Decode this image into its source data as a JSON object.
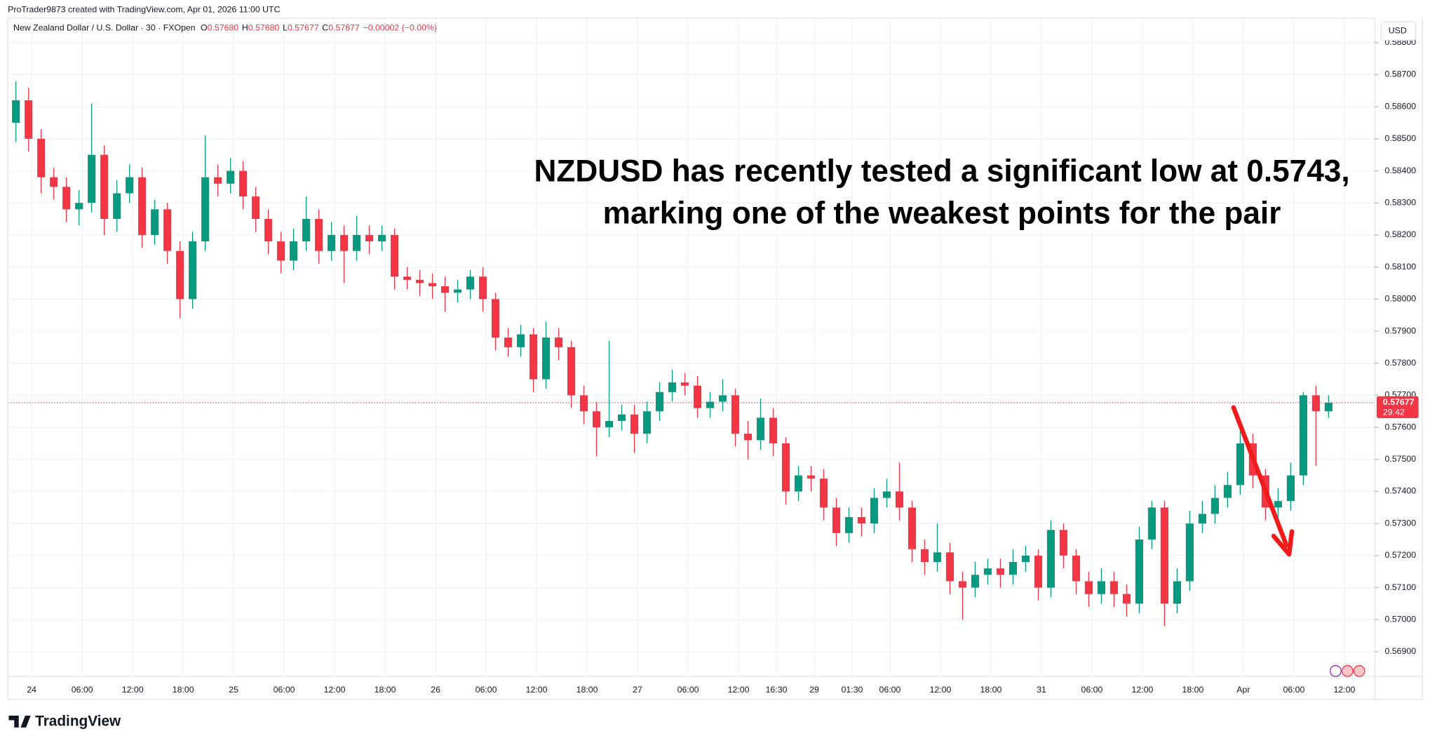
{
  "header": {
    "attribution": "ProTrader9873 created with TradingView.com, Apr 01, 2026 11:00 UTC",
    "symbol": "New Zealand Dollar / U.S. Dollar · 30 · FXOpen",
    "ohlc": [
      {
        "label": "O",
        "value": "0.57680"
      },
      {
        "label": "H",
        "value": "0.57680"
      },
      {
        "label": "L",
        "value": "0.57677"
      },
      {
        "label": "C",
        "value": "0.57677"
      }
    ],
    "change": "−0.00002 (−0.00%)",
    "currency": "USD"
  },
  "footer": {
    "logo": "TradingView"
  },
  "chart_data": {
    "type": "candlestick",
    "annotation": [
      "NZDUSD has recently tested a significant low at 0.5743,",
      "marking one of the weakest points for the pair"
    ],
    "up_color": "#089981",
    "down_color": "#f23645",
    "grid": true,
    "last_price": 0.57677,
    "countdown": "29:42",
    "ylim": [
      0.56823,
      0.58876
    ],
    "yticks": [
      {
        "value": 0.569,
        "label": "0.56900"
      },
      {
        "value": 0.57,
        "label": "0.57000"
      },
      {
        "value": 0.571,
        "label": "0.57100"
      },
      {
        "value": 0.572,
        "label": "0.57200"
      },
      {
        "value": 0.573,
        "label": "0.57300"
      },
      {
        "value": 0.574,
        "label": "0.57400"
      },
      {
        "value": 0.575,
        "label": "0.57500"
      },
      {
        "value": 0.576,
        "label": "0.57600"
      },
      {
        "value": 0.577,
        "label": "0.57700"
      },
      {
        "value": 0.578,
        "label": "0.57800"
      },
      {
        "value": 0.579,
        "label": "0.57900"
      },
      {
        "value": 0.58,
        "label": "0.58000"
      },
      {
        "value": 0.581,
        "label": "0.58100"
      },
      {
        "value": 0.582,
        "label": "0.58200"
      },
      {
        "value": 0.583,
        "label": "0.58300"
      },
      {
        "value": 0.584,
        "label": "0.58400"
      },
      {
        "value": 0.585,
        "label": "0.58500"
      },
      {
        "value": 0.586,
        "label": "0.58600"
      },
      {
        "value": 0.587,
        "label": "0.58700"
      },
      {
        "value": 0.588,
        "label": "0.58800"
      }
    ],
    "xlim": [
      -0.14,
      108.16
    ],
    "xticks": [
      {
        "value": 1.75,
        "label": "24"
      },
      {
        "value": 5.75,
        "label": "06:00"
      },
      {
        "value": 9.75,
        "label": "12:00"
      },
      {
        "value": 13.75,
        "label": "18:00"
      },
      {
        "value": 17.75,
        "label": "25"
      },
      {
        "value": 21.75,
        "label": "06:00"
      },
      {
        "value": 25.75,
        "label": "12:00"
      },
      {
        "value": 29.75,
        "label": "18:00"
      },
      {
        "value": 33.75,
        "label": "26"
      },
      {
        "value": 37.75,
        "label": "06:00"
      },
      {
        "value": 41.75,
        "label": "12:00"
      },
      {
        "value": 45.75,
        "label": "18:00"
      },
      {
        "value": 49.75,
        "label": "27"
      },
      {
        "value": 53.75,
        "label": "06:00"
      },
      {
        "value": 57.75,
        "label": "12:00"
      },
      {
        "value": 60.75,
        "label": "16:30"
      },
      {
        "value": 63.75,
        "label": "29"
      },
      {
        "value": 66.75,
        "label": "01:30"
      },
      {
        "value": 69.75,
        "label": "06:00"
      },
      {
        "value": 73.75,
        "label": "12:00"
      },
      {
        "value": 77.75,
        "label": "18:00"
      },
      {
        "value": 81.75,
        "label": "31"
      },
      {
        "value": 85.75,
        "label": "06:00"
      },
      {
        "value": 89.75,
        "label": "12:00"
      },
      {
        "value": 93.75,
        "label": "18:00"
      },
      {
        "value": 97.75,
        "label": "Apr"
      },
      {
        "value": 101.75,
        "label": "06:00"
      },
      {
        "value": 105.75,
        "label": "12:00"
      }
    ],
    "candles": [
      [
        0.5855,
        0.5868,
        0.5849,
        0.5862
      ],
      [
        0.5862,
        0.5866,
        0.5846,
        0.585
      ],
      [
        0.585,
        0.5853,
        0.5833,
        0.5838
      ],
      [
        0.5838,
        0.5841,
        0.5831,
        0.5835
      ],
      [
        0.5835,
        0.5838,
        0.5824,
        0.5828
      ],
      [
        0.5828,
        0.5834,
        0.5823,
        0.583
      ],
      [
        0.583,
        0.5861,
        0.5827,
        0.5845
      ],
      [
        0.5845,
        0.5848,
        0.582,
        0.5825
      ],
      [
        0.5825,
        0.5837,
        0.5821,
        0.5833
      ],
      [
        0.5833,
        0.5842,
        0.583,
        0.5838
      ],
      [
        0.5838,
        0.5841,
        0.5816,
        0.582
      ],
      [
        0.582,
        0.5831,
        0.5817,
        0.5828
      ],
      [
        0.5828,
        0.583,
        0.5811,
        0.5815
      ],
      [
        0.5815,
        0.5818,
        0.5794,
        0.58
      ],
      [
        0.58,
        0.5821,
        0.5797,
        0.5818
      ],
      [
        0.5818,
        0.5851,
        0.5815,
        0.5838
      ],
      [
        0.5838,
        0.5842,
        0.5832,
        0.5836
      ],
      [
        0.5836,
        0.5844,
        0.5833,
        0.584
      ],
      [
        0.584,
        0.5843,
        0.5828,
        0.5832
      ],
      [
        0.5832,
        0.5835,
        0.5821,
        0.5825
      ],
      [
        0.5825,
        0.5828,
        0.5814,
        0.5818
      ],
      [
        0.5818,
        0.5821,
        0.5808,
        0.5812
      ],
      [
        0.5812,
        0.5822,
        0.5809,
        0.5818
      ],
      [
        0.5818,
        0.5832,
        0.5815,
        0.5825
      ],
      [
        0.5825,
        0.5828,
        0.5811,
        0.5815
      ],
      [
        0.5815,
        0.5824,
        0.5812,
        0.582
      ],
      [
        0.582,
        0.5823,
        0.5805,
        0.5815
      ],
      [
        0.5815,
        0.5826,
        0.5812,
        0.582
      ],
      [
        0.582,
        0.5823,
        0.5814,
        0.5818
      ],
      [
        0.5818,
        0.5823,
        0.5815,
        0.582
      ],
      [
        0.582,
        0.5822,
        0.5803,
        0.5807
      ],
      [
        0.5807,
        0.581,
        0.5803,
        0.5806
      ],
      [
        0.5806,
        0.5809,
        0.5801,
        0.5805
      ],
      [
        0.5805,
        0.5808,
        0.58,
        0.5804
      ],
      [
        0.5804,
        0.5807,
        0.5796,
        0.5802
      ],
      [
        0.5802,
        0.5806,
        0.5799,
        0.5803
      ],
      [
        0.5803,
        0.5809,
        0.58,
        0.5807
      ],
      [
        0.5807,
        0.581,
        0.5796,
        0.58
      ],
      [
        0.58,
        0.5802,
        0.5784,
        0.5788
      ],
      [
        0.5788,
        0.5791,
        0.5782,
        0.5785
      ],
      [
        0.5785,
        0.5792,
        0.5782,
        0.5789
      ],
      [
        0.5789,
        0.5791,
        0.5771,
        0.5775
      ],
      [
        0.5775,
        0.5793,
        0.5772,
        0.5788
      ],
      [
        0.5788,
        0.5791,
        0.5781,
        0.5785
      ],
      [
        0.5785,
        0.5787,
        0.5766,
        0.577
      ],
      [
        0.577,
        0.5773,
        0.5761,
        0.5765
      ],
      [
        0.5765,
        0.5768,
        0.5751,
        0.576
      ],
      [
        0.576,
        0.5787,
        0.5757,
        0.5762
      ],
      [
        0.5762,
        0.5767,
        0.5759,
        0.5764
      ],
      [
        0.5764,
        0.5767,
        0.5752,
        0.5758
      ],
      [
        0.5758,
        0.5768,
        0.5755,
        0.5765
      ],
      [
        0.5765,
        0.5774,
        0.5762,
        0.5771
      ],
      [
        0.5771,
        0.5778,
        0.5768,
        0.5774
      ],
      [
        0.5774,
        0.5777,
        0.577,
        0.5773
      ],
      [
        0.5773,
        0.5776,
        0.5763,
        0.5766
      ],
      [
        0.5766,
        0.5771,
        0.5763,
        0.5768
      ],
      [
        0.5768,
        0.5775,
        0.5765,
        0.577
      ],
      [
        0.577,
        0.5772,
        0.5754,
        0.5758
      ],
      [
        0.5758,
        0.5762,
        0.575,
        0.5756
      ],
      [
        0.5756,
        0.5769,
        0.5753,
        0.5763
      ],
      [
        0.5763,
        0.5766,
        0.5751,
        0.5755
      ],
      [
        0.5755,
        0.5757,
        0.5736,
        0.574
      ],
      [
        0.574,
        0.5748,
        0.5737,
        0.5745
      ],
      [
        0.5745,
        0.5748,
        0.574,
        0.5744
      ],
      [
        0.5744,
        0.5747,
        0.5731,
        0.5735
      ],
      [
        0.5735,
        0.5738,
        0.5723,
        0.5727
      ],
      [
        0.5727,
        0.5735,
        0.5724,
        0.5732
      ],
      [
        0.5732,
        0.5735,
        0.5726,
        0.573
      ],
      [
        0.573,
        0.5741,
        0.5727,
        0.5738
      ],
      [
        0.5738,
        0.5744,
        0.5735,
        0.574
      ],
      [
        0.574,
        0.5749,
        0.5731,
        0.5735
      ],
      [
        0.5735,
        0.5737,
        0.5718,
        0.5722
      ],
      [
        0.5722,
        0.5725,
        0.5714,
        0.5718
      ],
      [
        0.5718,
        0.573,
        0.5715,
        0.5721
      ],
      [
        0.5721,
        0.5724,
        0.5708,
        0.5712
      ],
      [
        0.5712,
        0.5715,
        0.57,
        0.571
      ],
      [
        0.571,
        0.5718,
        0.5707,
        0.5714
      ],
      [
        0.5714,
        0.5719,
        0.5711,
        0.5716
      ],
      [
        0.5716,
        0.5719,
        0.571,
        0.5714
      ],
      [
        0.5714,
        0.5722,
        0.5711,
        0.5718
      ],
      [
        0.5718,
        0.5723,
        0.5715,
        0.572
      ],
      [
        0.572,
        0.5722,
        0.5706,
        0.571
      ],
      [
        0.571,
        0.5731,
        0.5707,
        0.5728
      ],
      [
        0.5728,
        0.573,
        0.5716,
        0.572
      ],
      [
        0.572,
        0.5722,
        0.5708,
        0.5712
      ],
      [
        0.5712,
        0.5715,
        0.5704,
        0.5708
      ],
      [
        0.5708,
        0.5716,
        0.5705,
        0.5712
      ],
      [
        0.5712,
        0.5715,
        0.5704,
        0.5708
      ],
      [
        0.5708,
        0.5711,
        0.5701,
        0.5705
      ],
      [
        0.5705,
        0.5729,
        0.5702,
        0.5725
      ],
      [
        0.5725,
        0.5737,
        0.5722,
        0.5735
      ],
      [
        0.5735,
        0.5737,
        0.5698,
        0.5705
      ],
      [
        0.5705,
        0.5716,
        0.5702,
        0.5712
      ],
      [
        0.5712,
        0.5734,
        0.5709,
        0.573
      ],
      [
        0.573,
        0.5737,
        0.5727,
        0.5733
      ],
      [
        0.5733,
        0.5742,
        0.573,
        0.5738
      ],
      [
        0.5738,
        0.5746,
        0.5735,
        0.5742
      ],
      [
        0.5742,
        0.5759,
        0.5739,
        0.5755
      ],
      [
        0.5755,
        0.5758,
        0.5741,
        0.5745
      ],
      [
        0.5745,
        0.5747,
        0.5731,
        0.5735
      ],
      [
        0.5735,
        0.5741,
        0.5732,
        0.5737
      ],
      [
        0.5737,
        0.5749,
        0.5734,
        0.5745
      ],
      [
        0.5745,
        0.5771,
        0.5742,
        0.577
      ],
      [
        0.577,
        0.5773,
        0.5748,
        0.5765
      ],
      [
        0.5765,
        0.577,
        0.5763,
        0.57677
      ]
    ]
  }
}
